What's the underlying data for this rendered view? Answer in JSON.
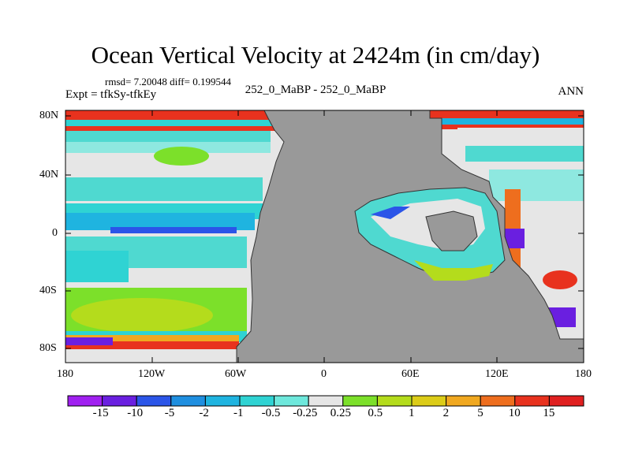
{
  "title": "Ocean Vertical Velocity at 2424m (in cm/day)",
  "stats_text": "rmsd= 7.20048 diff= 0.199544",
  "left_label": "Expt = tfkSy-tfkEy",
  "center_label": "252_0_MaBP - 252_0_MaBP",
  "right_label": "ANN",
  "lat_ticks": [
    "80N",
    "40N",
    "0",
    "40S",
    "80S"
  ],
  "lon_ticks": [
    "180",
    "120W",
    "60W",
    "0",
    "60E",
    "120E",
    "180"
  ],
  "colorbar": {
    "labels": [
      "-15",
      "-10",
      "-5",
      "-2",
      "-1",
      "-0.5",
      "-0.25",
      "0.25",
      "0.5",
      "1",
      "2",
      "5",
      "10",
      "15"
    ],
    "colors": [
      "#a020f0",
      "#6a1fe0",
      "#2b55e8",
      "#1f8fe0",
      "#1fb4e0",
      "#2fd3d3",
      "#6ee8dc",
      "#e6e6e6",
      "#7ce02a",
      "#b4dc1c",
      "#dccc18",
      "#f0a820",
      "#ee6e1e",
      "#e8321e",
      "#e02020"
    ]
  },
  "colors": {
    "land": "#999999",
    "background_field": "#e6e6e6"
  }
}
